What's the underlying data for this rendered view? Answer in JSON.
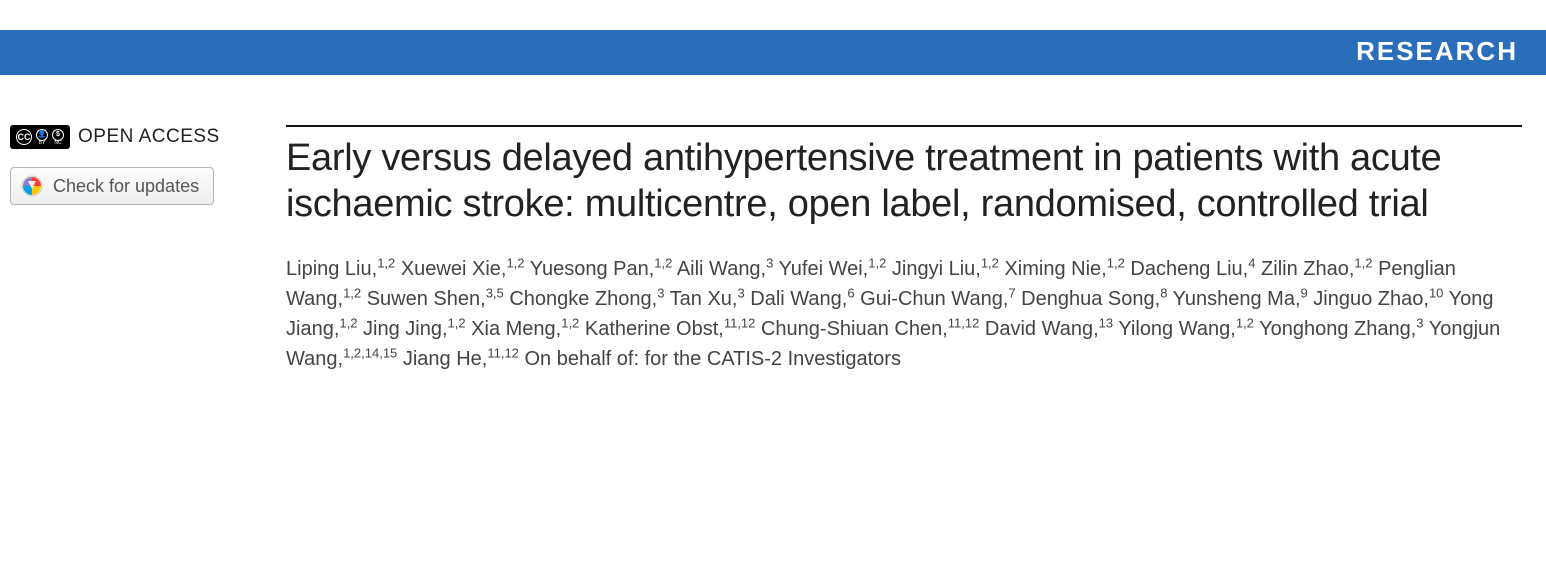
{
  "banner": {
    "label": "RESEARCH",
    "bg": "#2a6ebb",
    "fg": "#ffffff"
  },
  "sidebar": {
    "open_access_label": "OPEN ACCESS",
    "cc_text": "CC",
    "by_text": "BY",
    "nc_text": "NC",
    "updates_button": "Check for updates"
  },
  "article": {
    "title": "Early versus delayed antihypertensive treatment in patients with acute ischaemic stroke: multicentre, open label, randomised, controlled trial",
    "authors": [
      {
        "name": "Liping Liu",
        "aff": "1,2"
      },
      {
        "name": "Xuewei Xie",
        "aff": "1,2"
      },
      {
        "name": "Yuesong Pan",
        "aff": "1,2"
      },
      {
        "name": "Aili Wang",
        "aff": "3"
      },
      {
        "name": "Yufei Wei",
        "aff": "1,2"
      },
      {
        "name": "Jingyi Liu",
        "aff": "1,2"
      },
      {
        "name": "Ximing Nie",
        "aff": "1,2"
      },
      {
        "name": "Dacheng Liu",
        "aff": "4"
      },
      {
        "name": "Zilin Zhao",
        "aff": "1,2"
      },
      {
        "name": "Penglian Wang",
        "aff": "1,2"
      },
      {
        "name": "Suwen Shen",
        "aff": "3,5"
      },
      {
        "name": "Chongke Zhong",
        "aff": "3"
      },
      {
        "name": "Tan Xu",
        "aff": "3"
      },
      {
        "name": "Dali Wang",
        "aff": "6"
      },
      {
        "name": "Gui-Chun Wang",
        "aff": "7"
      },
      {
        "name": "Denghua Song",
        "aff": "8"
      },
      {
        "name": "Yunsheng Ma",
        "aff": "9"
      },
      {
        "name": "Jinguo Zhao",
        "aff": "10"
      },
      {
        "name": "Yong Jiang",
        "aff": "1,2"
      },
      {
        "name": "Jing Jing",
        "aff": "1,2"
      },
      {
        "name": "Xia Meng",
        "aff": "1,2"
      },
      {
        "name": "Katherine Obst",
        "aff": "11,12"
      },
      {
        "name": "Chung-Shiuan Chen",
        "aff": "11,12"
      },
      {
        "name": "David Wang",
        "aff": "13"
      },
      {
        "name": "Yilong Wang",
        "aff": "1,2"
      },
      {
        "name": "Yonghong Zhang",
        "aff": "3"
      },
      {
        "name": "Yongjun Wang",
        "aff": "1,2,14,15"
      },
      {
        "name": "Jiang He",
        "aff": "11,12"
      }
    ],
    "behalf": "On behalf of: for the CATIS-2 Investigators"
  },
  "style": {
    "title_font_size": 38,
    "author_font_size": 20,
    "banner_font_size": 26,
    "rule_color": "#111111",
    "text_color": "#222222",
    "author_color": "#444444"
  }
}
